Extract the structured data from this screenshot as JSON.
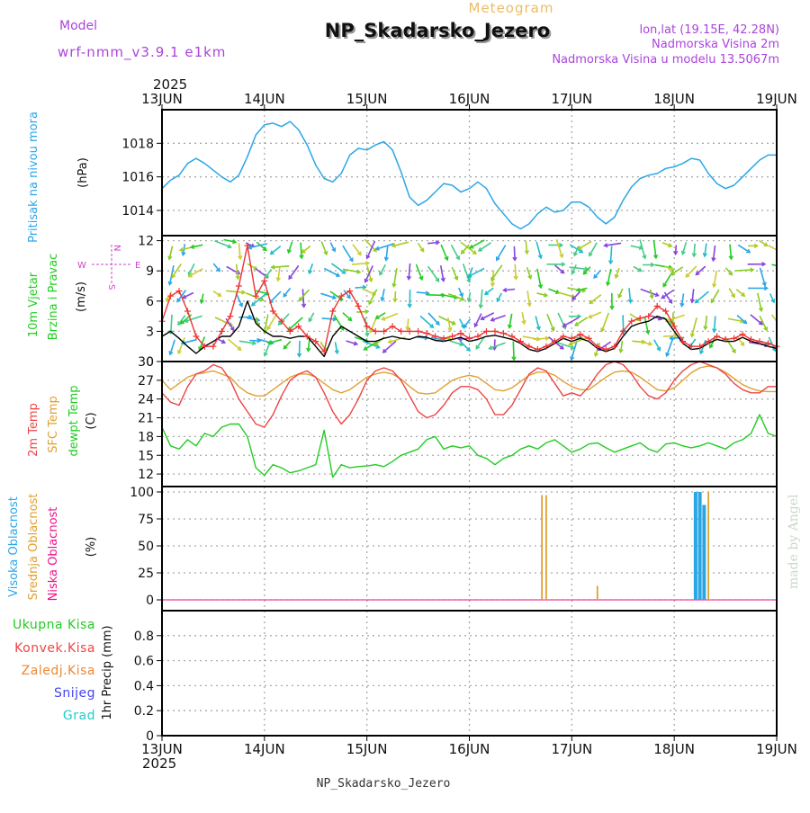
{
  "header": {
    "model_label": "Model",
    "model_name": "wrf-nmm_v3.9.1  e1km",
    "subtitle": "Meteogram",
    "station_title": "NP_Skadarsko_Jezero",
    "lonlat": "lon,lat (19.15E, 42.28N)",
    "height": "Nadmorska Visina 2m",
    "model_height": "Nadmorska Visina u modelu 13.5067m",
    "year_top": "2025",
    "year_bottom": "2025",
    "footer_station": "NP_Skadarsko_Jezero",
    "credit": "made by Angel"
  },
  "colors": {
    "pressure": "#2aa6e6",
    "wind_label": "#22cc22",
    "wind_speed_red": "#ee3333",
    "wind_speed_black": "#000000",
    "t2m": "#ee4444",
    "sfc": "#e0a030",
    "dewpt": "#22cc22",
    "cloud_high": "#2aa6e6",
    "cloud_mid": "#e0a030",
    "cloud_low": "#ee1188",
    "total_precip": "#22cc22",
    "conv_precip": "#ee4444",
    "frozen": "#ee8833",
    "snow": "#4444ee",
    "hail": "#22cccc",
    "compass": "#cc44cc",
    "model_text": "#aa44dd",
    "credit": "#c8d8c8"
  },
  "x_axis": {
    "dates": [
      "13JUN",
      "14JUN",
      "15JUN",
      "16JUN",
      "17JUN",
      "18JUN",
      "19JUN"
    ],
    "range_hours": [
      0,
      144
    ]
  },
  "compass_labels": {
    "n": "N",
    "s": "S",
    "e": "E",
    "w": "W"
  },
  "chart_data": [
    {
      "type": "line",
      "panel": "pressure",
      "ylabel_parts": [
        "Pritisak na nivou mora",
        "(hPa)"
      ],
      "ylim": [
        1012.5,
        1020
      ],
      "yticks": [
        1014,
        1016,
        1018
      ],
      "x_hours": [
        0,
        2,
        4,
        6,
        8,
        10,
        12,
        14,
        16,
        18,
        20,
        22,
        24,
        26,
        28,
        30,
        32,
        34,
        36,
        38,
        40,
        42,
        44,
        46,
        48,
        50,
        52,
        54,
        56,
        58,
        60,
        62,
        64,
        66,
        68,
        70,
        72,
        74,
        76,
        78,
        80,
        82,
        84,
        86,
        88,
        90,
        92,
        94,
        96,
        98,
        100,
        102,
        104,
        106,
        108,
        110,
        112,
        114,
        116,
        118,
        120,
        122,
        124,
        126,
        128,
        130,
        132,
        134,
        136,
        138,
        140,
        142,
        144
      ],
      "series": [
        {
          "values": [
            1015.3,
            1015.8,
            1016.1,
            1016.8,
            1017.1,
            1016.8,
            1016.4,
            1016,
            1015.7,
            1016.1,
            1017.2,
            1018.5,
            1019.1,
            1019.2,
            1019,
            1019.3,
            1018.8,
            1017.9,
            1016.7,
            1015.9,
            1015.7,
            1016.2,
            1017.3,
            1017.7,
            1017.6,
            1017.9,
            1018.1,
            1017.6,
            1016.3,
            1014.8,
            1014.3,
            1014.6,
            1015.1,
            1015.6,
            1015.5,
            1015.1,
            1015.3,
            1015.7,
            1015.3,
            1014.4,
            1013.8,
            1013.2,
            1012.9,
            1013.2,
            1013.8,
            1014.2,
            1013.9,
            1014,
            1014.5,
            1014.5,
            1014.2,
            1013.6,
            1013.2,
            1013.6,
            1014.6,
            1015.4,
            1015.9,
            1016.1,
            1016.2,
            1016.5,
            1016.6,
            1016.8,
            1017.1,
            1017,
            1016.2,
            1015.6,
            1015.3,
            1015.5,
            1016,
            1016.5,
            1017,
            1017.3,
            1017.3
          ]
        }
      ]
    },
    {
      "type": "line",
      "panel": "wind",
      "ylabel_parts": [
        "10m Vjetar",
        "Brzina i Pravac",
        "(m/s)"
      ],
      "ylim": [
        0,
        12.5
      ],
      "yticks": [
        0,
        3,
        6,
        9,
        12
      ],
      "x_hours": [
        0,
        2,
        4,
        6,
        8,
        10,
        12,
        14,
        16,
        18,
        20,
        22,
        24,
        26,
        28,
        30,
        32,
        34,
        36,
        38,
        40,
        42,
        44,
        46,
        48,
        50,
        52,
        54,
        56,
        58,
        60,
        62,
        64,
        66,
        68,
        70,
        72,
        74,
        76,
        78,
        80,
        82,
        84,
        86,
        88,
        90,
        92,
        94,
        96,
        98,
        100,
        102,
        104,
        106,
        108,
        110,
        112,
        114,
        116,
        118,
        120,
        122,
        124,
        126,
        128,
        130,
        132,
        134,
        136,
        138,
        140,
        142,
        144
      ],
      "series": [
        {
          "values": [
            4,
            6.5,
            7,
            5,
            2.5,
            1.5,
            1.5,
            3,
            4.5,
            7.5,
            11.5,
            6.5,
            8,
            5,
            4,
            3,
            3.5,
            2.5,
            2,
            1,
            5,
            6.5,
            7,
            5.5,
            3.5,
            3,
            3,
            3.5,
            3,
            3,
            3,
            2.8,
            2.5,
            2.3,
            2.5,
            2.8,
            2.3,
            2.5,
            3,
            3,
            2.8,
            2.5,
            2,
            1.5,
            1.2,
            1.5,
            2,
            2.5,
            2.3,
            2.7,
            2.3,
            1.5,
            1.2,
            1.5,
            3,
            4,
            4.3,
            4.5,
            5.5,
            5,
            3.5,
            2,
            1.5,
            1.5,
            2,
            2.5,
            2.2,
            2.3,
            2.7,
            2.2,
            2,
            1.8,
            1.5
          ]
        },
        {
          "values": [
            2.5,
            3,
            2.3,
            1.5,
            0.8,
            1.5,
            2,
            2.5,
            2.5,
            3.5,
            6,
            3.8,
            3,
            2.5,
            2.5,
            2.3,
            2.5,
            2.5,
            1.5,
            0.5,
            2.5,
            3.5,
            3,
            2.5,
            2,
            2,
            2.3,
            2.5,
            2.3,
            2.2,
            2.5,
            2.4,
            2.1,
            2,
            2.2,
            2.4,
            2,
            2.2,
            2.5,
            2.6,
            2.4,
            2.2,
            1.8,
            1.2,
            1,
            1.3,
            1.8,
            2.3,
            2,
            2.3,
            2,
            1.3,
            1,
            1.3,
            2.5,
            3.5,
            3.8,
            4,
            4.5,
            4.2,
            3,
            1.8,
            1.2,
            1.3,
            1.8,
            2.2,
            2,
            2,
            2.4,
            2,
            1.8,
            1.5,
            1.3
          ]
        }
      ]
    },
    {
      "type": "line",
      "panel": "temperature",
      "ylabel_parts": [
        "2m Temp",
        "SFC Temp",
        "dewpt Temp",
        "(C)"
      ],
      "ylim": [
        10,
        30
      ],
      "yticks": [
        12,
        15,
        18,
        21,
        24,
        27,
        30
      ],
      "x_hours": [
        0,
        2,
        4,
        6,
        8,
        10,
        12,
        14,
        16,
        18,
        20,
        22,
        24,
        26,
        28,
        30,
        32,
        34,
        36,
        38,
        40,
        42,
        44,
        46,
        48,
        50,
        52,
        54,
        56,
        58,
        60,
        62,
        64,
        66,
        68,
        70,
        72,
        74,
        76,
        78,
        80,
        82,
        84,
        86,
        88,
        90,
        92,
        94,
        96,
        98,
        100,
        102,
        104,
        106,
        108,
        110,
        112,
        114,
        116,
        118,
        120,
        122,
        124,
        126,
        128,
        130,
        132,
        134,
        136,
        138,
        140,
        142,
        144
      ],
      "series": [
        {
          "name": "2m Temp",
          "values": [
            25,
            23.5,
            23,
            26,
            28,
            28.5,
            29.5,
            29,
            27,
            24,
            22,
            20,
            19.5,
            21.5,
            24.5,
            27,
            28,
            28.5,
            27.5,
            25,
            22,
            20,
            21.5,
            24,
            27,
            28.5,
            29,
            28.5,
            27,
            24.5,
            22,
            21,
            21.5,
            23,
            25,
            26,
            26,
            25.5,
            24,
            21.5,
            21.5,
            23,
            25.5,
            28,
            29,
            28.5,
            26.5,
            24.5,
            25,
            24.5,
            26,
            28,
            29.5,
            30,
            29.5,
            28,
            26,
            24.5,
            24,
            25,
            27,
            28.5,
            29.5,
            30,
            29.5,
            29,
            28,
            26.5,
            25.5,
            25,
            25,
            26,
            26
          ]
        },
        {
          "name": "SFC Temp",
          "values": [
            27,
            25.5,
            26.5,
            27.5,
            28,
            28.2,
            28.5,
            28,
            27.5,
            26,
            25,
            24.5,
            24.5,
            25.5,
            26.5,
            27.5,
            28,
            28,
            27.5,
            26.5,
            25.5,
            25,
            25.5,
            26.5,
            27.5,
            28,
            28.3,
            28,
            27.2,
            26,
            25,
            24.8,
            25,
            26,
            27,
            27.5,
            27.8,
            27.5,
            26.5,
            25.5,
            25.3,
            25.8,
            26.8,
            27.8,
            28.3,
            28.3,
            27.8,
            26.8,
            26,
            25.5,
            25.5,
            26.5,
            27.5,
            28.3,
            28.5,
            28.3,
            27.5,
            26.5,
            25.5,
            25.3,
            25.8,
            27,
            28.2,
            29,
            29.3,
            29,
            28.3,
            27.3,
            26.3,
            25.7,
            25.3,
            25.2,
            25.2
          ]
        },
        {
          "name": "dewpt Temp",
          "values": [
            19.5,
            16.5,
            16,
            17.5,
            16.5,
            18.5,
            18,
            19.5,
            20,
            20,
            18,
            13,
            11.8,
            13.5,
            13,
            12.2,
            12.5,
            13,
            13.5,
            19,
            11.5,
            13.5,
            13,
            13.2,
            13.3,
            13.5,
            13.2,
            14,
            15,
            15.5,
            16,
            17.5,
            18,
            16,
            16.5,
            16.2,
            16.5,
            15,
            14.5,
            13.5,
            14.5,
            15,
            16,
            16.5,
            16,
            17,
            17.5,
            16.5,
            15.5,
            16,
            16.8,
            17,
            16.2,
            15.5,
            16,
            16.5,
            17,
            16,
            15.5,
            16.8,
            17,
            16.5,
            16.2,
            16.5,
            17,
            16.5,
            16,
            17,
            17.5,
            18.5,
            21.5,
            18.5,
            18
          ]
        }
      ]
    },
    {
      "type": "bar",
      "panel": "clouds",
      "ylabel_parts": [
        "Visoka Oblacnost",
        "Srednja Oblacnost",
        "Niska Oblacnost",
        "(%)"
      ],
      "ylim": [
        -10,
        105
      ],
      "yticks": [
        0,
        25,
        50,
        75,
        100
      ],
      "series": [
        {
          "name": "Visoka Oblacnost",
          "x_hours": [
            125,
            126,
            127
          ],
          "values": [
            100,
            100,
            88
          ]
        },
        {
          "name": "Srednja Oblacnost",
          "x_hours": [
            89,
            90,
            102,
            128
          ],
          "values": [
            97,
            97,
            13,
            100
          ]
        },
        {
          "name": "Niska Oblacnost",
          "x_hours": [],
          "values": []
        }
      ]
    },
    {
      "type": "bar",
      "panel": "precip",
      "ylabel_parts": [
        "1hr Precip (mm)"
      ],
      "legend": [
        "Ukupna Kisa",
        "Konvek.Kisa",
        "Zaledj.Kisa",
        "Snijeg",
        "Grad"
      ],
      "ylim": [
        0,
        1
      ],
      "yticks": [
        0,
        0.2,
        0.4,
        0.6,
        0.8
      ],
      "series": [
        {
          "name": "Ukupna Kisa",
          "values": []
        },
        {
          "name": "Konvek.Kisa",
          "values": []
        },
        {
          "name": "Zaledj.Kisa",
          "values": []
        },
        {
          "name": "Snijeg",
          "values": []
        },
        {
          "name": "Grad",
          "values": []
        }
      ]
    }
  ]
}
